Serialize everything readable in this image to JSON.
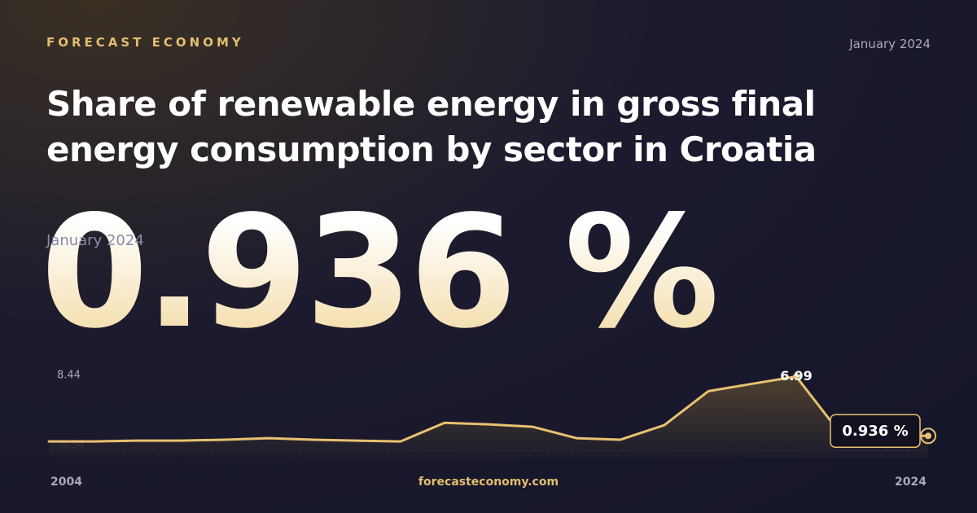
{
  "brand": "FORECAST ECONOMY",
  "date": "January 2024",
  "footer": "forecasteconomy.com",
  "chart_data": {
    "type": "line",
    "title": "Share of renewable energy in gross final energy consumption by sector in Croatia",
    "period": "January 2024",
    "x": [
      2004,
      2005,
      2006,
      2007,
      2008,
      2009,
      2010,
      2011,
      2012,
      2013,
      2014,
      2015,
      2016,
      2017,
      2018,
      2019,
      2020,
      2021,
      2022,
      2023,
      2024
    ],
    "values": [
      0.37,
      0.37,
      0.45,
      0.45,
      0.54,
      0.7,
      0.54,
      0.45,
      0.37,
      2.27,
      2.11,
      1.86,
      0.7,
      0.54,
      2.03,
      5.5,
      6.25,
      6.99,
      1.2,
      0.936,
      0.936
    ],
    "value_labels": [
      null,
      null,
      null,
      null,
      null,
      null,
      null,
      null,
      null,
      null,
      null,
      null,
      null,
      null,
      null,
      null,
      null,
      "6.99",
      null,
      null,
      "0.936 %"
    ],
    "color": "#e8c170",
    "xlim": [
      2004,
      2024
    ],
    "xticks": [
      2004,
      2024
    ],
    "ylim": [
      -0.54,
      8.44
    ],
    "yticks": [
      -0.54,
      8.44
    ]
  }
}
